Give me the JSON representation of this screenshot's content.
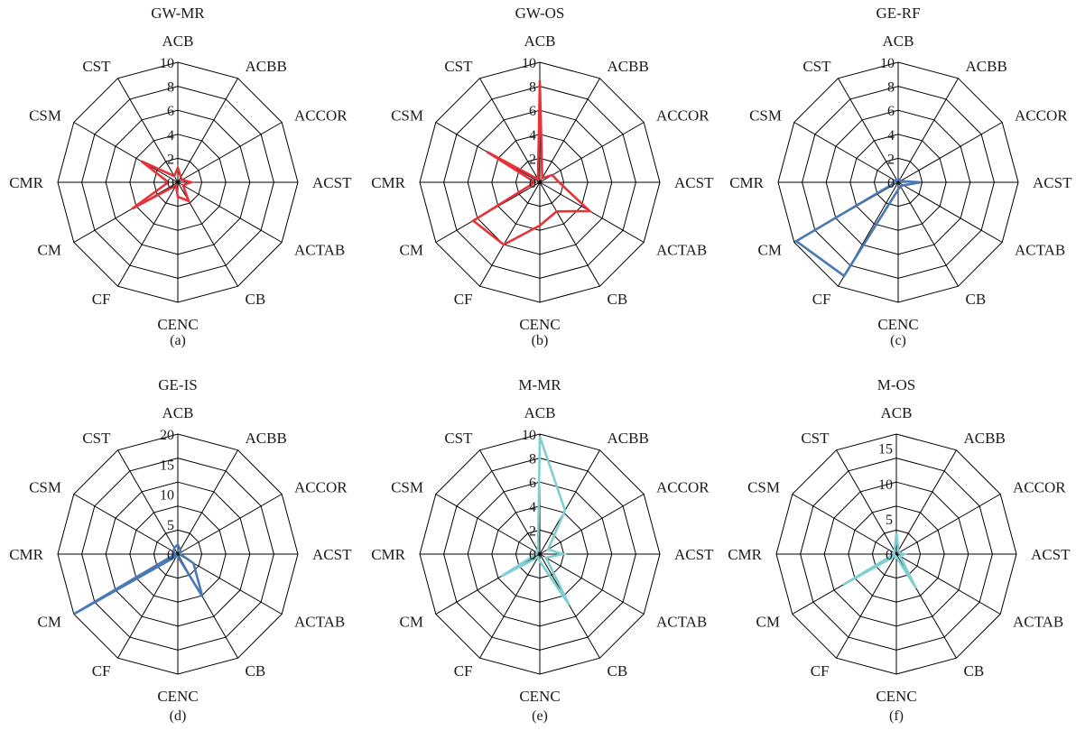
{
  "chart_data": [
    {
      "type": "radar",
      "title": "GW-MR",
      "panel_label": "(a)",
      "categories": [
        "ACB",
        "ACBB",
        "ACCOR",
        "ACST",
        "ACTAB",
        "CB",
        "CENC",
        "CF",
        "CM",
        "CMR",
        "CSM",
        "CST"
      ],
      "radial_ticks": [
        0,
        2,
        4,
        6,
        8,
        10
      ],
      "rmax": 10,
      "grid": true,
      "color": "#e8323a",
      "values": [
        1.2,
        0.5,
        0.4,
        1.1,
        0.5,
        1.8,
        1.2,
        0.3,
        4.4,
        0.8,
        3.5,
        0.6
      ]
    },
    {
      "type": "radar",
      "title": "GW-OS",
      "panel_label": "(b)",
      "categories": [
        "ACB",
        "ACBB",
        "ACCOR",
        "ACST",
        "ACTAB",
        "CB",
        "CENC",
        "CF",
        "CM",
        "CMR",
        "CSM",
        "CST"
      ],
      "radial_ticks": [
        0,
        2,
        4,
        6,
        8,
        10
      ],
      "rmax": 10,
      "grid": true,
      "color": "#e8323a",
      "values": [
        8.5,
        0.4,
        1.2,
        1.6,
        4.8,
        2.8,
        3.6,
        6.0,
        6.4,
        0.4,
        5.1,
        0.3
      ]
    },
    {
      "type": "radar",
      "title": "GE-RF",
      "panel_label": "(c)",
      "categories": [
        "ACB",
        "ACBB",
        "ACCOR",
        "ACST",
        "ACTAB",
        "CB",
        "CENC",
        "CF",
        "CM",
        "CMR",
        "CSM",
        "CST"
      ],
      "radial_ticks": [
        0,
        2,
        4,
        6,
        8,
        10
      ],
      "rmax": 10,
      "grid": true,
      "color": "#4a78b3",
      "values": [
        0.2,
        0.3,
        0.2,
        1.9,
        0.5,
        0.4,
        0.6,
        9.0,
        9.8,
        0.2,
        0.3,
        0.2
      ]
    },
    {
      "type": "radar",
      "title": "GE-IS",
      "panel_label": "(d)",
      "categories": [
        "ACB",
        "ACBB",
        "ACCOR",
        "ACST",
        "ACTAB",
        "CB",
        "CENC",
        "CF",
        "CM",
        "CMR",
        "CSM",
        "CST"
      ],
      "radial_ticks": [
        0,
        5,
        10,
        15,
        20
      ],
      "rmax": 20,
      "grid": true,
      "color": "#4a78b3",
      "values": [
        1.6,
        0.8,
        0.4,
        0.4,
        3.0,
        8.2,
        0.4,
        0.4,
        20.0,
        0.4,
        0.8,
        1.2
      ]
    },
    {
      "type": "radar",
      "title": "M-MR",
      "panel_label": "(e)",
      "categories": [
        "ACB",
        "ACBB",
        "ACCOR",
        "ACST",
        "ACTAB",
        "CB",
        "CENC",
        "CF",
        "CM",
        "CMR",
        "CSM",
        "CST"
      ],
      "radial_ticks": [
        0,
        2,
        4,
        6,
        8,
        10
      ],
      "rmax": 10,
      "grid": true,
      "color": "#7fcfd2",
      "values": [
        9.8,
        4.2,
        0.8,
        1.9,
        0.6,
        4.9,
        0.6,
        0.3,
        3.7,
        0.3,
        0.3,
        0.3
      ]
    },
    {
      "type": "radar",
      "title": "M-OS",
      "panel_label": "(f)",
      "categories": [
        "ACB",
        "ACBB",
        "ACCOR",
        "ACST",
        "ACTAB",
        "CB",
        "CENC",
        "CF",
        "CM",
        "CMR",
        "CSM",
        "CST"
      ],
      "radial_ticks": [
        0,
        5,
        10,
        15
      ],
      "rmax": 17,
      "grid": true,
      "color": "#7fcfd2",
      "values": [
        3.0,
        0.6,
        0.4,
        1.1,
        0.6,
        5.6,
        0.4,
        0.3,
        8.7,
        0.3,
        0.4,
        0.5
      ]
    }
  ]
}
